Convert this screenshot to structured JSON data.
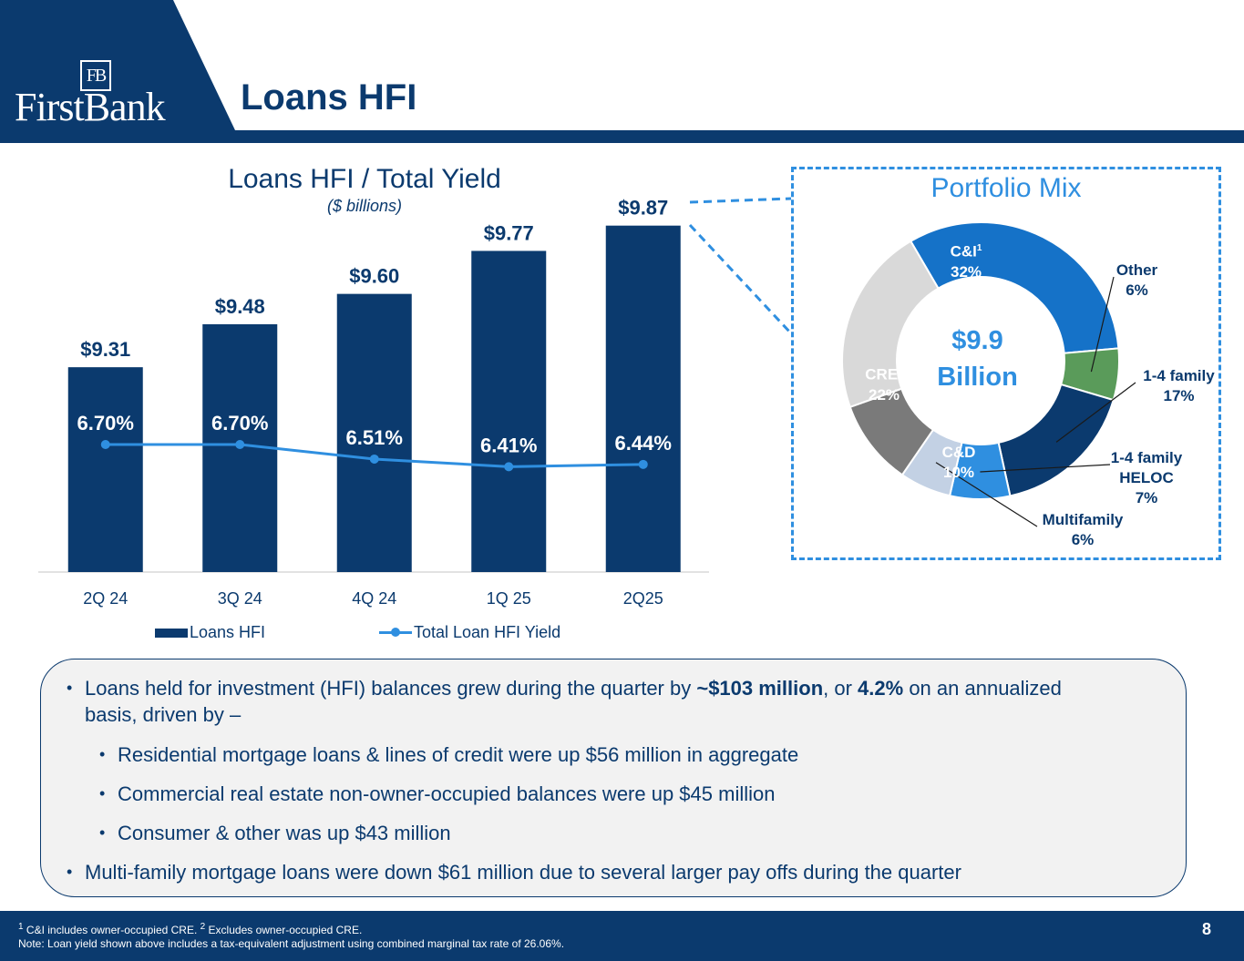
{
  "header": {
    "logo_monogram": "FB",
    "logo_text": "FirstBank",
    "title": "Loans HFI"
  },
  "colors": {
    "navy": "#0b3a6e",
    "accent_blue": "#2f8fe0",
    "footer": "#0b3a6e"
  },
  "chart_data": [
    {
      "type": "bar",
      "title": "Loans HFI / Total Yield",
      "subtitle": "($ billions)",
      "categories": [
        "2Q 24",
        "3Q 24",
        "4Q 24",
        "1Q 25",
        "2Q25"
      ],
      "series": [
        {
          "name": "Loans HFI",
          "type": "bar",
          "values": [
            9.31,
            9.48,
            9.6,
            9.77,
            9.87
          ],
          "labels": [
            "$9.31",
            "$9.48",
            "$9.60",
            "$9.77",
            "$9.87"
          ],
          "color": "#0b3a6e"
        },
        {
          "name": "Total Loan HFI Yield",
          "type": "line",
          "values": [
            6.7,
            6.7,
            6.51,
            6.41,
            6.44
          ],
          "labels": [
            "6.70%",
            "6.70%",
            "6.51%",
            "6.41%",
            "6.44%"
          ],
          "color": "#2f8fe0"
        }
      ],
      "legend": "bottom",
      "grid": false
    },
    {
      "type": "pie",
      "title": "Portfolio Mix",
      "center_value": "$9.9",
      "center_unit": "Billion",
      "slices": [
        {
          "label": "C&I",
          "sup": "1",
          "pct_label": "32%",
          "value": 32,
          "color": "#1572c8"
        },
        {
          "label": "Other",
          "pct_label": "6%",
          "value": 6,
          "color": "#5a9b5a"
        },
        {
          "label": "1-4 family",
          "pct_label": "17%",
          "value": 17,
          "color": "#0b3a6e"
        },
        {
          "label": "1-4 family HELOC",
          "line1": "1-4 family",
          "line2": "HELOC",
          "pct_label": "7%",
          "value": 7,
          "color": "#2f8fe0"
        },
        {
          "label": "Multifamily",
          "pct_label": "6%",
          "value": 6,
          "color": "#c3d1e4"
        },
        {
          "label": "C&D",
          "pct_label": "10%",
          "value": 10,
          "color": "#7a7a7a"
        },
        {
          "label": "CRE",
          "sup": "2",
          "pct_label": "22%",
          "value": 22,
          "color": "#d9d9d9"
        }
      ]
    }
  ],
  "bullets": [
    {
      "pre": "Loans held for investment (HFI) balances grew during the quarter by ",
      "b1": "~$103 million",
      "mid": ", or ",
      "b2": "4.2%",
      "post_line1": " on an annualized",
      "line2": "basis, driven by –"
    },
    {
      "text": "Residential mortgage loans & lines of credit were up $56 million in aggregate"
    },
    {
      "text": "Commercial real estate non-owner-occupied balances were up $45 million"
    },
    {
      "text": "Consumer & other was up $43 million"
    },
    {
      "text": "Multi-family mortgage loans were down $61 million due to several larger pay offs during the quarter"
    }
  ],
  "bullet_symbol": "•",
  "footer": {
    "note1_sup1": "1",
    "note1_a": " C&I includes owner-occupied CRE. ",
    "note1_sup2": "2",
    "note1_b": " Excludes owner-occupied CRE.",
    "note2": "Note: Loan yield shown above includes a tax-equivalent adjustment using combined marginal tax rate of 26.06%.",
    "page_number": "8"
  }
}
